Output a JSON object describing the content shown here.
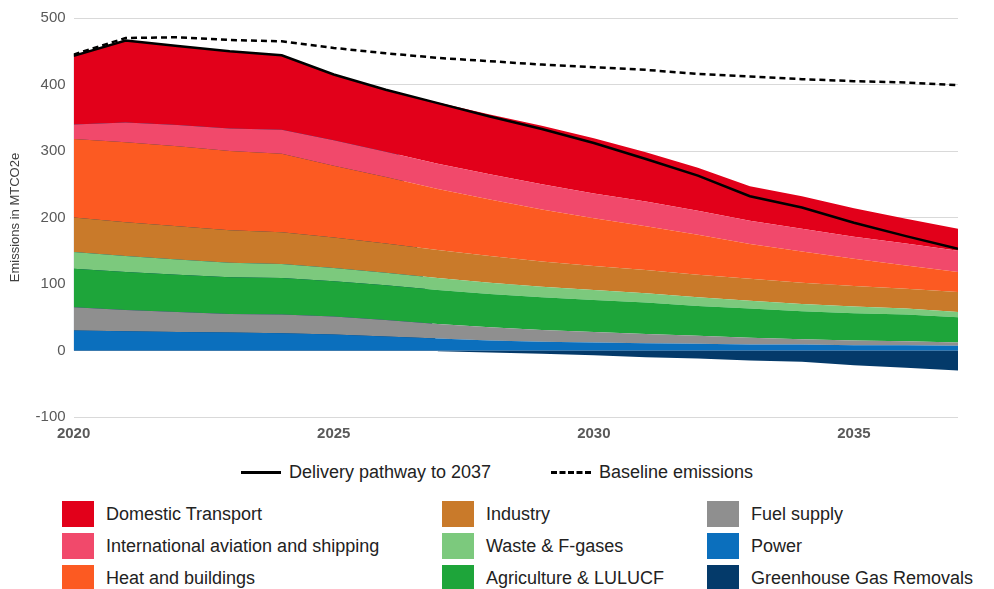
{
  "chart_data": {
    "type": "area",
    "y_label": "Emissions in MTCO2e",
    "x": [
      2020,
      2021,
      2022,
      2023,
      2024,
      2025,
      2026,
      2027,
      2028,
      2029,
      2030,
      2031,
      2032,
      2033,
      2034,
      2035,
      2036,
      2037
    ],
    "xlim": [
      2020,
      2037
    ],
    "xticks": [
      2020,
      2025,
      2030,
      2035
    ],
    "ylim": [
      -100,
      500
    ],
    "yticks": [
      -100,
      0,
      100,
      200,
      300,
      400,
      500
    ],
    "grid": "y",
    "stacked": true,
    "legend": "bottom",
    "series": [
      {
        "name": "Delivery pathway to 2037",
        "type": "line",
        "line_style": "solid",
        "color": "#000000",
        "values": [
          443,
          466,
          458,
          450,
          444,
          415,
          392,
          372,
          352,
          333,
          312,
          288,
          263,
          232,
          215,
          192,
          172,
          153
        ]
      },
      {
        "name": "Baseline emissions",
        "type": "line",
        "line_style": "dashed",
        "color": "#000000",
        "values": [
          445,
          470,
          471,
          467,
          465,
          455,
          447,
          440,
          435,
          430,
          426,
          422,
          416,
          412,
          408,
          405,
          403,
          399
        ]
      },
      {
        "name": "Domestic Transport",
        "type": "area",
        "color": "#e2001a",
        "values": [
          103,
          123,
          119,
          116,
          112,
          99,
          93,
          92,
          90,
          88,
          83,
          74,
          65,
          52,
          49,
          43,
          37,
          33
        ]
      },
      {
        "name": "International aviation and shipping",
        "type": "area",
        "color": "#f1496b",
        "values": [
          22,
          30,
          32,
          34,
          36,
          38,
          38,
          38,
          38,
          38,
          37,
          37,
          36,
          35,
          34,
          33,
          33,
          32
        ]
      },
      {
        "name": "Heat and buildings",
        "type": "area",
        "color": "#fc5a22",
        "values": [
          118,
          120,
          120,
          119,
          118,
          108,
          100,
          92,
          85,
          78,
          72,
          66,
          60,
          52,
          47,
          41,
          35,
          30
        ]
      },
      {
        "name": "Industry",
        "type": "area",
        "color": "#c97a2a",
        "values": [
          52,
          51,
          50,
          49,
          48,
          46,
          44,
          42,
          40,
          38,
          36,
          35,
          34,
          33,
          32,
          31,
          30,
          30
        ]
      },
      {
        "name": "Waste & F-gases",
        "type": "area",
        "color": "#7cc97d",
        "values": [
          25,
          24,
          23,
          22,
          21,
          20,
          19,
          18,
          17,
          16,
          15,
          14,
          13,
          12,
          11,
          10,
          9,
          8
        ]
      },
      {
        "name": "Agriculture & LULUCF",
        "type": "area",
        "color": "#1ea53a",
        "values": [
          58,
          57,
          56,
          55,
          55,
          53,
          52,
          51,
          50,
          49,
          48,
          47,
          45,
          44,
          42,
          41,
          40,
          38
        ]
      },
      {
        "name": "Fuel supply",
        "type": "area",
        "color": "#8f8f8f",
        "values": [
          35,
          32,
          30,
          28,
          28,
          27,
          25,
          22,
          20,
          18,
          16,
          14,
          12,
          10,
          8,
          7,
          6,
          5
        ]
      },
      {
        "name": "Power",
        "type": "area",
        "color": "#0b6fbd",
        "values": [
          30,
          29,
          28,
          27,
          26,
          24,
          21,
          18,
          15,
          13,
          12,
          11,
          10,
          9,
          9,
          8,
          8,
          7
        ]
      },
      {
        "name": "Greenhouse Gas Removals",
        "type": "area",
        "color": "#043a6a",
        "values": [
          0,
          0,
          0,
          0,
          0,
          0,
          0,
          -1,
          -3,
          -5,
          -7,
          -10,
          -12,
          -15,
          -17,
          -22,
          -26,
          -30
        ]
      }
    ]
  }
}
